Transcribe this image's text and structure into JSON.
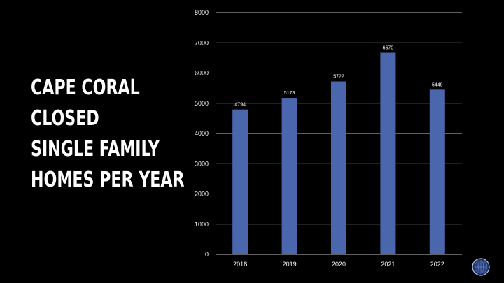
{
  "slide": {
    "title_lines": [
      "CAPE CORAL",
      "CLOSED",
      "SINGLE FAMILY",
      "HOMES PER YEAR"
    ]
  },
  "colors": {
    "background": "#000000",
    "bar": "#4a66ad",
    "grid": "#ffffff",
    "text": "#ffffff"
  },
  "chart_data": {
    "type": "bar",
    "categories": [
      "2018",
      "2019",
      "2020",
      "2021",
      "2022"
    ],
    "values": [
      4794,
      5178,
      5722,
      6670,
      5449
    ],
    "title": "",
    "xlabel": "",
    "ylabel": "",
    "ylim": [
      0,
      8000
    ],
    "yticks": [
      0,
      1000,
      2000,
      3000,
      4000,
      5000,
      6000,
      7000,
      8000
    ],
    "grid": true,
    "data_labels": true
  },
  "logo": {
    "icon": "globe-icon"
  }
}
